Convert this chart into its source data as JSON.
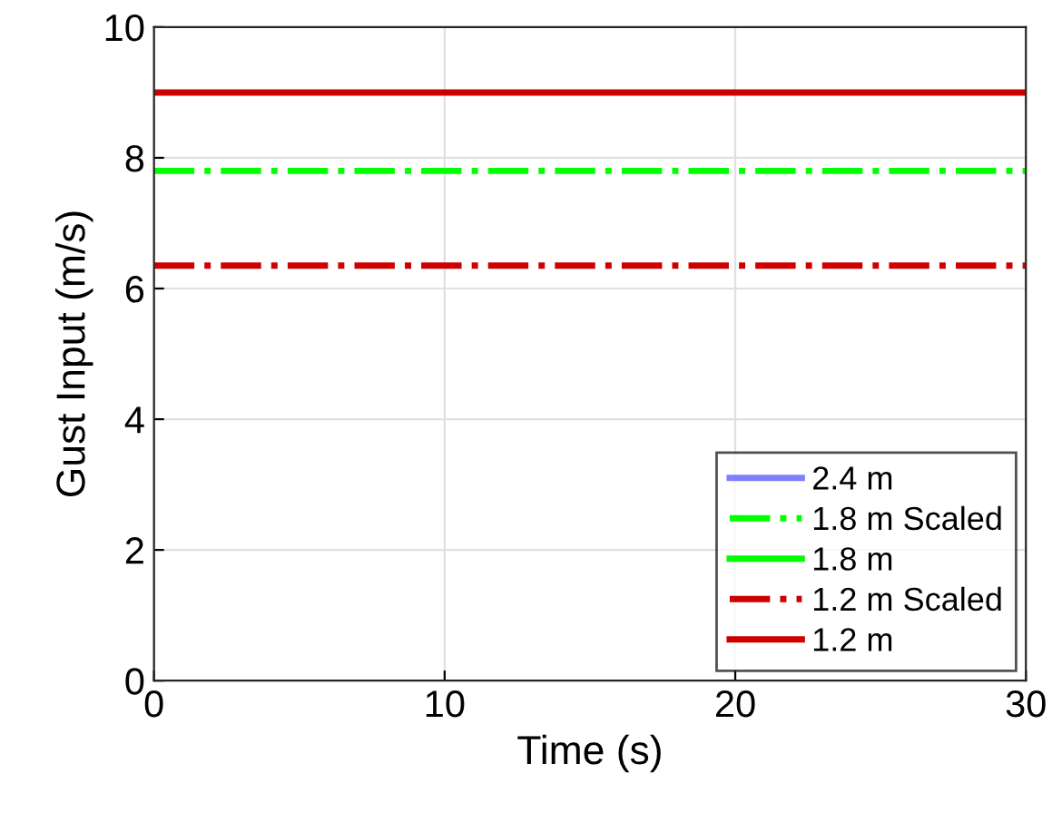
{
  "chart_data": {
    "type": "line",
    "xlabel": "Time (s)",
    "ylabel": "Gust Input (m/s)",
    "x": [
      0,
      30
    ],
    "xlim": [
      0,
      30
    ],
    "xticks": [
      0,
      10,
      20,
      30
    ],
    "ylim": [
      0,
      10
    ],
    "yticks": [
      0,
      2,
      4,
      6,
      8,
      10
    ],
    "grid": true,
    "legend": "bottom right",
    "marker": "none",
    "series": [
      {
        "name": "2.4 m",
        "color": "#8080ff",
        "line_style": "solid",
        "values": [
          null,
          null
        ]
      },
      {
        "name": "1.8 m Scaled",
        "color": "#00ff00",
        "line_style": "dashdot",
        "values": [
          7.8,
          7.8
        ]
      },
      {
        "name": "1.8 m",
        "color": "#00ff00",
        "line_style": "solid",
        "values": [
          null,
          null
        ]
      },
      {
        "name": "1.2 m Scaled",
        "color": "#cc0000",
        "line_style": "dashdot",
        "values": [
          6.35,
          6.35
        ]
      },
      {
        "name": "1.2 m",
        "color": "#cc0000",
        "line_style": "solid",
        "values": [
          9,
          9
        ]
      }
    ]
  }
}
